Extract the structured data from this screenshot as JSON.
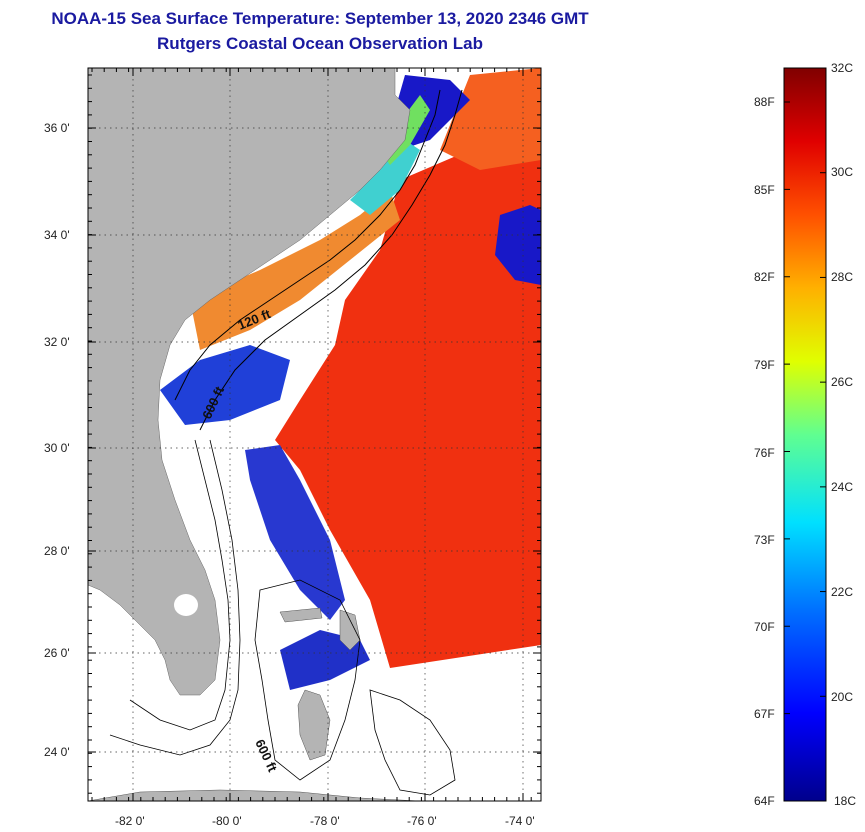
{
  "title": {
    "line1": "NOAA-15 Sea Surface Temperature:  September 13, 2020 2346 GMT",
    "line2": "Rutgers Coastal Ocean Observation Lab"
  },
  "axes": {
    "lat_labels": [
      "36 0'",
      "34 0'",
      "32 0'",
      "30 0'",
      "28 0'",
      "26 0'",
      "24 0'"
    ],
    "lon_labels": [
      "-82 0'",
      "-80 0'",
      "-78 0'",
      "-76 0'",
      "-74 0'"
    ]
  },
  "contours": {
    "label_120ft": "120 ft",
    "label_600ft_a": "600 ft",
    "label_600ft_b": "600 ft"
  },
  "colorbar": {
    "celsius": [
      "32C",
      "30C",
      "28C",
      "26C",
      "24C",
      "22C",
      "20C",
      "18C"
    ],
    "fahrenheit": [
      "88F",
      "85F",
      "82F",
      "79F",
      "76F",
      "73F",
      "70F",
      "67F",
      "64F"
    ],
    "range_c": [
      18,
      32
    ]
  },
  "colors": {
    "land": "#b4b4b4",
    "title": "#1a1aa0",
    "warm": "#f03010",
    "cool": "#1010c0"
  }
}
